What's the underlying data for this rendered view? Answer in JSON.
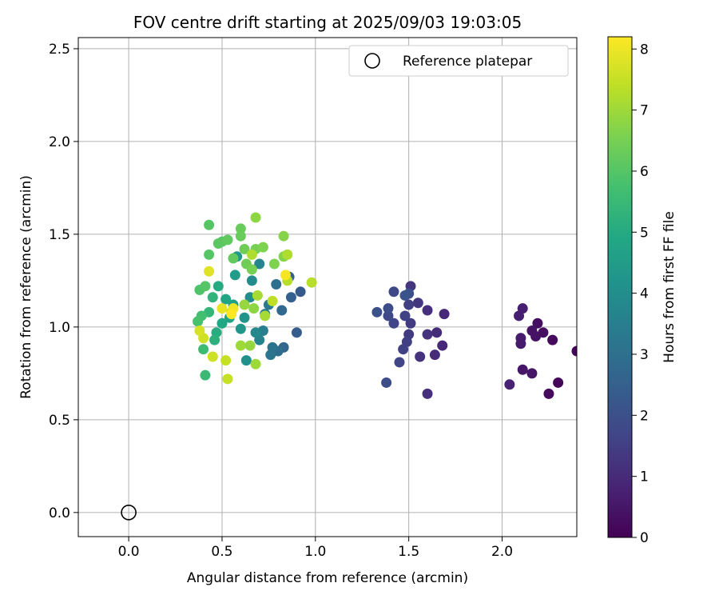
{
  "chart_data": {
    "type": "scatter",
    "title": "FOV centre drift starting at 2025/09/03 19:03:05",
    "xlabel": "Angular distance from reference (arcmin)",
    "ylabel": "Rotation from reference (arcmin)",
    "xlim": [
      -0.27,
      2.4
    ],
    "ylim": [
      -0.13,
      2.56
    ],
    "xticks": [
      0.0,
      0.5,
      1.0,
      1.5,
      2.0
    ],
    "yticks": [
      0.0,
      0.5,
      1.0,
      1.5,
      2.0,
      2.5
    ],
    "xtick_labels": [
      "0.0",
      "0.5",
      "1.0",
      "1.5",
      "2.0"
    ],
    "ytick_labels": [
      "0.0",
      "0.5",
      "1.0",
      "1.5",
      "2.0",
      "2.5"
    ],
    "grid": true,
    "legend": {
      "placement": "top-right",
      "entries": [
        "Reference platepar"
      ]
    },
    "reference_point": {
      "name": "Reference platepar",
      "x": 0.0,
      "y": 0.0
    },
    "colorbar": {
      "label": "Hours from first FF file",
      "min": 0,
      "max": 8.2,
      "ticks": [
        0,
        1,
        2,
        3,
        4,
        5,
        6,
        7,
        8
      ],
      "tick_labels": [
        "0",
        "1",
        "2",
        "3",
        "4",
        "5",
        "6",
        "7",
        "8"
      ],
      "colormap": "viridis"
    },
    "series": [
      {
        "points": [
          [
            2.4,
            0.87,
            0.1
          ],
          [
            2.3,
            0.7,
            0.1
          ],
          [
            2.25,
            0.64,
            0.2
          ],
          [
            2.27,
            0.93,
            0.2
          ],
          [
            2.22,
            0.97,
            0.3
          ],
          [
            2.19,
            1.02,
            0.3
          ],
          [
            2.18,
            0.95,
            0.4
          ],
          [
            2.16,
            0.98,
            0.4
          ],
          [
            2.16,
            0.75,
            0.5
          ],
          [
            2.11,
            0.77,
            0.5
          ],
          [
            2.1,
            0.91,
            0.6
          ],
          [
            2.1,
            0.94,
            0.6
          ],
          [
            2.09,
            1.06,
            0.7
          ],
          [
            2.11,
            1.1,
            0.7
          ],
          [
            2.04,
            0.69,
            0.8
          ],
          [
            1.69,
            1.07,
            0.9
          ],
          [
            1.68,
            0.9,
            0.9
          ],
          [
            1.65,
            0.97,
            1.0
          ],
          [
            1.64,
            0.85,
            1.0
          ],
          [
            1.6,
            0.64,
            1.1
          ],
          [
            1.6,
            1.09,
            1.1
          ],
          [
            1.6,
            0.96,
            1.2
          ],
          [
            1.56,
            0.84,
            1.2
          ],
          [
            1.55,
            1.13,
            1.3
          ],
          [
            1.51,
            1.22,
            1.3
          ],
          [
            1.51,
            1.02,
            1.4
          ],
          [
            1.5,
            0.96,
            1.4
          ],
          [
            1.5,
            1.12,
            1.5
          ],
          [
            1.49,
            0.92,
            1.5
          ],
          [
            1.47,
            0.88,
            1.6
          ],
          [
            1.48,
            1.06,
            1.6
          ],
          [
            1.45,
            0.81,
            1.7
          ],
          [
            1.42,
            1.02,
            1.7
          ],
          [
            1.42,
            1.19,
            1.8
          ],
          [
            1.39,
            1.06,
            1.8
          ],
          [
            1.38,
            0.7,
            1.9
          ],
          [
            1.39,
            1.1,
            1.9
          ],
          [
            1.33,
            1.08,
            2.0
          ],
          [
            1.5,
            1.18,
            2.0
          ],
          [
            1.48,
            1.17,
            2.1
          ],
          [
            0.92,
            1.19,
            2.3
          ],
          [
            0.9,
            0.97,
            2.4
          ],
          [
            0.87,
            1.16,
            2.5
          ],
          [
            0.86,
            1.27,
            2.6
          ],
          [
            0.83,
            0.89,
            2.7
          ],
          [
            0.82,
            1.09,
            2.8
          ],
          [
            0.8,
            0.87,
            2.9
          ],
          [
            0.79,
            1.23,
            3.0
          ],
          [
            0.77,
            0.89,
            3.1
          ],
          [
            0.76,
            0.85,
            3.2
          ],
          [
            0.75,
            1.12,
            3.3
          ],
          [
            0.73,
            1.07,
            3.4
          ],
          [
            0.72,
            0.98,
            3.5
          ],
          [
            0.7,
            0.93,
            3.6
          ],
          [
            0.7,
            1.34,
            3.7
          ],
          [
            0.68,
            0.97,
            3.8
          ],
          [
            0.66,
            1.25,
            3.9
          ],
          [
            0.65,
            1.16,
            4.0
          ],
          [
            0.63,
            0.82,
            4.1
          ],
          [
            0.62,
            1.05,
            4.2
          ],
          [
            0.6,
            0.99,
            4.3
          ],
          [
            0.58,
            1.38,
            4.4
          ],
          [
            0.57,
            1.28,
            4.5
          ],
          [
            0.56,
            1.12,
            4.6
          ],
          [
            0.54,
            1.05,
            4.7
          ],
          [
            0.52,
            1.15,
            4.8
          ],
          [
            0.5,
            1.02,
            4.9
          ],
          [
            0.48,
            1.22,
            5.0
          ],
          [
            0.47,
            0.97,
            5.1
          ],
          [
            0.46,
            0.93,
            5.2
          ],
          [
            0.45,
            1.16,
            5.3
          ],
          [
            0.43,
            1.08,
            5.4
          ],
          [
            0.41,
            0.74,
            5.5
          ],
          [
            0.4,
            0.88,
            5.6
          ],
          [
            0.39,
            1.06,
            5.7
          ],
          [
            0.37,
            1.03,
            5.8
          ],
          [
            0.38,
            1.2,
            5.9
          ],
          [
            0.41,
            1.22,
            6.0
          ],
          [
            0.43,
            1.39,
            6.0
          ],
          [
            0.43,
            1.55,
            6.0
          ],
          [
            0.48,
            1.45,
            6.1
          ],
          [
            0.5,
            1.46,
            6.1
          ],
          [
            0.53,
            1.47,
            6.2
          ],
          [
            0.56,
            1.37,
            6.2
          ],
          [
            0.6,
            1.53,
            6.3
          ],
          [
            0.6,
            1.49,
            6.3
          ],
          [
            0.62,
            1.42,
            6.4
          ],
          [
            0.63,
            1.34,
            6.4
          ],
          [
            0.66,
            1.31,
            6.5
          ],
          [
            0.68,
            1.42,
            6.5
          ],
          [
            0.72,
            1.43,
            6.6
          ],
          [
            0.78,
            1.34,
            6.6
          ],
          [
            0.83,
            1.38,
            6.7
          ],
          [
            0.83,
            1.49,
            6.7
          ],
          [
            0.68,
            1.59,
            6.8
          ],
          [
            0.67,
            1.1,
            6.8
          ],
          [
            0.62,
            1.12,
            6.9
          ],
          [
            0.65,
            0.9,
            6.9
          ],
          [
            0.6,
            0.9,
            7.0
          ],
          [
            0.68,
            0.8,
            7.0
          ],
          [
            0.73,
            1.06,
            7.1
          ],
          [
            0.69,
            1.17,
            7.1
          ],
          [
            0.66,
            1.39,
            7.2
          ],
          [
            0.85,
            1.39,
            7.2
          ],
          [
            0.85,
            1.25,
            7.3
          ],
          [
            0.98,
            1.24,
            7.3
          ],
          [
            0.77,
            1.14,
            7.4
          ],
          [
            0.55,
            1.08,
            7.4
          ],
          [
            0.52,
            0.82,
            7.5
          ],
          [
            0.53,
            0.72,
            7.5
          ],
          [
            0.45,
            0.84,
            7.6
          ],
          [
            0.4,
            0.94,
            7.6
          ],
          [
            0.38,
            0.98,
            7.7
          ],
          [
            0.43,
            1.3,
            7.8
          ],
          [
            0.5,
            1.1,
            7.9
          ],
          [
            0.56,
            1.1,
            8.0
          ],
          [
            0.84,
            1.28,
            8.1
          ],
          [
            0.55,
            1.07,
            8.2
          ]
        ]
      }
    ]
  }
}
